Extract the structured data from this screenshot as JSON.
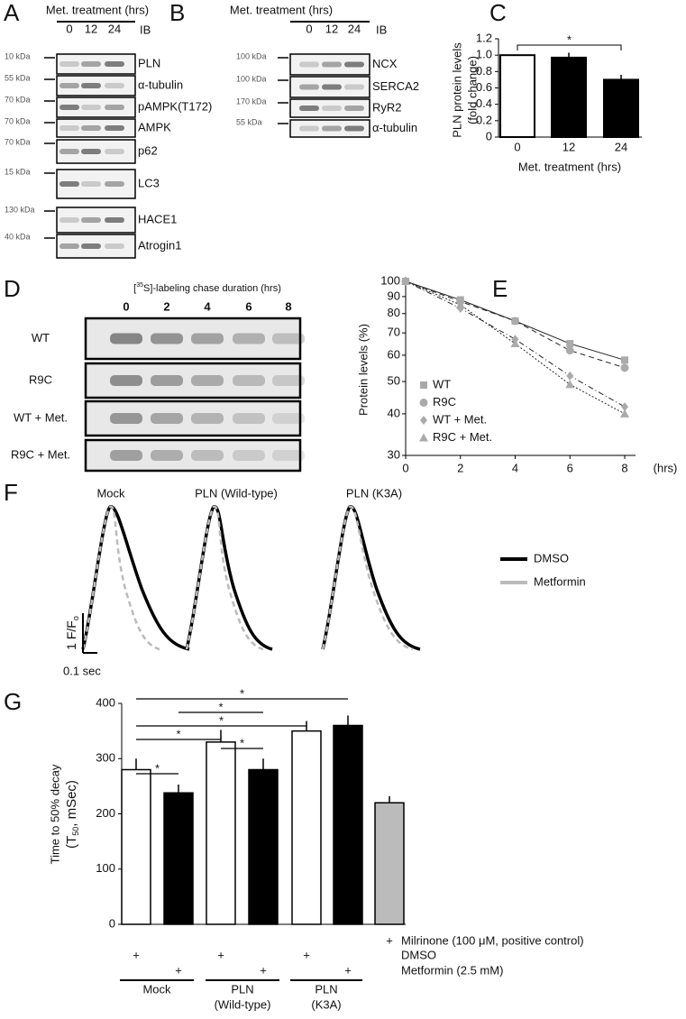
{
  "panels": [
    "A",
    "B",
    "C",
    "D",
    "E",
    "F",
    "G"
  ],
  "blot_a": {
    "header": "Met. treatment (hrs)",
    "lanes": [
      "0",
      "12",
      "24"
    ],
    "ib": "IB",
    "rows": [
      {
        "marker": "10 kDa",
        "label": "PLN"
      },
      {
        "marker": "55 kDa",
        "label": "α-tubulin"
      },
      {
        "marker": "70 kDa",
        "label": "pAMPK(T172)"
      },
      {
        "marker": "70 kDa",
        "label": "AMPK"
      },
      {
        "marker": "70 kDa",
        "label": "p62"
      },
      {
        "marker": "15 kDa",
        "label": "LC3"
      },
      {
        "marker": "130 kDa",
        "label": "HACE1"
      },
      {
        "marker": "40 kDa",
        "label": "Atrogin1"
      }
    ]
  },
  "blot_b": {
    "header": "Met. treatment (hrs)",
    "lanes": [
      "0",
      "12",
      "24"
    ],
    "ib": "IB",
    "rows": [
      {
        "marker": "100 kDa",
        "label": "NCX"
      },
      {
        "marker": "100 kDa",
        "label": "SERCA2"
      },
      {
        "marker": "170 kDa",
        "label": "RyR2"
      },
      {
        "marker": "55 kDa",
        "label": "α-tubulin"
      }
    ]
  },
  "blot_d": {
    "header": [
      "[",
      "35",
      "S]-labeling chase duration (hrs)"
    ],
    "lanes": [
      "0",
      "2",
      "4",
      "6",
      "8"
    ],
    "rows": [
      "WT",
      "R9C",
      "WT + Met.",
      "R9C + Met."
    ]
  },
  "traces_f": {
    "groups": [
      "Mock",
      "PLN (Wild-type)",
      "PLN (K3A)"
    ],
    "legend": [
      {
        "name": "DMSO",
        "color": "#000000"
      },
      {
        "name": "Metformin",
        "color": "#bbbbbb"
      }
    ],
    "scale_y": [
      "1 F/F",
      "o"
    ],
    "scale_x": "0.1 sec"
  },
  "chart_data": [
    {
      "type": "bar",
      "categories": [
        "0",
        "12",
        "24"
      ],
      "values": [
        1.0,
        0.97,
        0.7
      ],
      "errors": [
        0,
        0.06,
        0.06
      ],
      "colors": [
        "#ffffff",
        "#000000",
        "#000000"
      ],
      "ylabel": [
        "PLN protein levels",
        "(fold change)"
      ],
      "xlabel": "Met. treatment (hrs)",
      "ylim": [
        0,
        1.2
      ],
      "yticks": [
        0,
        0.2,
        0.4,
        0.6,
        0.8,
        {
          "value": 1,
          "label": "1.0"
        },
        1.2
      ],
      "significance": [
        {
          "label": "*",
          "pair": [
            0,
            2
          ]
        }
      ]
    },
    {
      "type": "line",
      "log_y": true,
      "ylabel": "Protein levels (%)",
      "xlabel": "(hrs)",
      "xlim": [
        0,
        8
      ],
      "xticks": [
        0,
        2,
        4,
        6,
        8
      ],
      "ylim": [
        30,
        100
      ],
      "yticks": [
        30,
        40,
        50,
        60,
        70,
        80,
        90,
        100
      ],
      "series": [
        {
          "name": "WT",
          "color": "#aaaaaa",
          "marker": "square",
          "dash": "solid",
          "x": [
            0,
            2,
            4,
            6,
            8
          ],
          "values": [
            100,
            88,
            76,
            65,
            58
          ]
        },
        {
          "name": "R9C",
          "color": "#aaaaaa",
          "marker": "circle",
          "dash": "dashed",
          "x": [
            0,
            2,
            4,
            6,
            8
          ],
          "values": [
            100,
            87,
            76,
            62,
            55
          ]
        },
        {
          "name": "WT + Met.",
          "color": "#aaaaaa",
          "marker": "diamond",
          "dash": "dashdot",
          "x": [
            0,
            2,
            4,
            6,
            8
          ],
          "values": [
            100,
            83,
            67,
            52,
            42
          ]
        },
        {
          "name": "R9C + Met.",
          "color": "#aaaaaa",
          "marker": "triangle",
          "dash": "dotted",
          "x": [
            0,
            2,
            4,
            6,
            8
          ],
          "values": [
            100,
            85,
            65,
            49,
            40
          ]
        }
      ]
    },
    {
      "type": "bar",
      "values": [
        280,
        238,
        330,
        280,
        350,
        360,
        220
      ],
      "errors": [
        20,
        15,
        22,
        20,
        18,
        18,
        12
      ],
      "colors": [
        "#ffffff",
        "#000000",
        "#ffffff",
        "#000000",
        "#ffffff",
        "#000000",
        "#bbbbbb"
      ],
      "ylabel": [
        "Time to 50% decay",
        "(T",
        "50",
        ", mSec)"
      ],
      "ylim": [
        0,
        400
      ],
      "yticks": [
        0,
        100,
        200,
        300,
        400
      ],
      "conditions": [
        {
          "label": "Milrinone (100 μM, positive control)",
          "marks": [
            null,
            null,
            null,
            null,
            null,
            null,
            "+"
          ]
        },
        {
          "label": "DMSO",
          "marks": [
            "+",
            null,
            "+",
            null,
            "+",
            null,
            null
          ]
        },
        {
          "label": "Metformin (2.5 mM)",
          "marks": [
            null,
            "+",
            null,
            "+",
            null,
            "+",
            null
          ]
        }
      ],
      "groups": [
        [
          "Mock"
        ],
        [
          "PLN",
          "(Wild-type)"
        ],
        [
          "PLN",
          "(K3A)"
        ]
      ],
      "significance": [
        {
          "label": "*",
          "pair": [
            0,
            5
          ]
        },
        {
          "label": "*",
          "pair": [
            1,
            3
          ]
        },
        {
          "label": "*",
          "pair": [
            0,
            4
          ]
        },
        {
          "label": "*",
          "pair": [
            0,
            2
          ]
        },
        {
          "label": "*",
          "pair": [
            2,
            3
          ]
        },
        {
          "label": "*",
          "pair": [
            0,
            1
          ]
        }
      ]
    }
  ]
}
